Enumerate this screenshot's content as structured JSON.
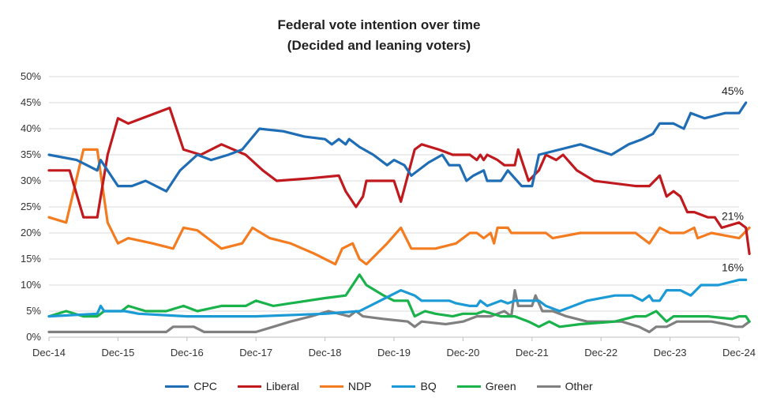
{
  "chart_data": {
    "type": "line",
    "title": [
      "Federal vote intention over time",
      "(Decided and leaning voters)"
    ],
    "ylim": [
      0,
      50
    ],
    "yticks": [
      "0%",
      "5%",
      "10%",
      "15%",
      "20%",
      "25%",
      "30%",
      "35%",
      "40%",
      "45%",
      "50%"
    ],
    "x_unit": "years since Dec 2014",
    "xlim": [
      0,
      10
    ],
    "xticks": [
      "Dec-14",
      "Dec-15",
      "Dec-16",
      "Dec-17",
      "Dec-18",
      "Dec-19",
      "Dec-20",
      "Dec-21",
      "Dec-22",
      "Dec-23",
      "Dec-24"
    ],
    "annotations": [
      {
        "label": "45%",
        "x": 10,
        "y": 45,
        "anchor": "above"
      },
      {
        "label": "21%",
        "x": 10,
        "y": 21,
        "anchor": "above"
      },
      {
        "label": "16%",
        "x": 10,
        "y": 16,
        "anchor": "below"
      }
    ],
    "series": [
      {
        "name": "CPC",
        "color": "#1f6eb5",
        "points": [
          [
            0,
            35
          ],
          [
            0.4,
            34
          ],
          [
            0.7,
            32
          ],
          [
            0.75,
            34
          ],
          [
            0.95,
            30
          ],
          [
            1.0,
            29
          ],
          [
            1.2,
            29
          ],
          [
            1.4,
            30
          ],
          [
            1.7,
            28
          ],
          [
            1.9,
            32
          ],
          [
            2.15,
            35
          ],
          [
            2.35,
            34
          ],
          [
            2.6,
            35
          ],
          [
            2.8,
            36
          ],
          [
            3.05,
            40
          ],
          [
            3.4,
            39.5
          ],
          [
            3.7,
            38.5
          ],
          [
            4.0,
            38
          ],
          [
            4.1,
            37
          ],
          [
            4.2,
            38
          ],
          [
            4.3,
            37
          ],
          [
            4.35,
            38
          ],
          [
            4.5,
            36.5
          ],
          [
            4.7,
            35
          ],
          [
            4.9,
            33
          ],
          [
            5.0,
            34
          ],
          [
            5.15,
            33
          ],
          [
            5.25,
            31
          ],
          [
            5.5,
            33.5
          ],
          [
            5.7,
            35
          ],
          [
            5.8,
            33
          ],
          [
            5.95,
            33
          ],
          [
            6.05,
            30
          ],
          [
            6.15,
            31
          ],
          [
            6.3,
            32
          ],
          [
            6.35,
            30
          ],
          [
            6.55,
            30
          ],
          [
            6.65,
            32
          ],
          [
            6.85,
            29
          ],
          [
            7.0,
            29
          ],
          [
            7.1,
            35
          ],
          [
            7.7,
            37
          ],
          [
            8.15,
            35
          ],
          [
            8.4,
            37
          ],
          [
            8.6,
            38
          ],
          [
            8.75,
            39
          ],
          [
            8.85,
            41
          ],
          [
            9.05,
            41
          ],
          [
            9.2,
            40
          ],
          [
            9.3,
            43
          ],
          [
            9.5,
            42
          ],
          [
            9.8,
            43
          ],
          [
            10.0,
            43
          ],
          [
            10.1,
            45
          ]
        ]
      },
      {
        "name": "Liberal",
        "color": "#c0191e",
        "points": [
          [
            0,
            32
          ],
          [
            0.3,
            32
          ],
          [
            0.5,
            23
          ],
          [
            0.7,
            23
          ],
          [
            0.85,
            35
          ],
          [
            1.0,
            42
          ],
          [
            1.15,
            41
          ],
          [
            1.45,
            42.5
          ],
          [
            1.75,
            44
          ],
          [
            1.95,
            36
          ],
          [
            2.2,
            35
          ],
          [
            2.5,
            37
          ],
          [
            2.85,
            35
          ],
          [
            3.1,
            32
          ],
          [
            3.3,
            30
          ],
          [
            3.8,
            30.5
          ],
          [
            4.2,
            31
          ],
          [
            4.3,
            28
          ],
          [
            4.45,
            25
          ],
          [
            4.55,
            27
          ],
          [
            4.6,
            30
          ],
          [
            5.0,
            30
          ],
          [
            5.1,
            26
          ],
          [
            5.3,
            36
          ],
          [
            5.4,
            37
          ],
          [
            5.65,
            36
          ],
          [
            5.85,
            35
          ],
          [
            6.1,
            35
          ],
          [
            6.2,
            34
          ],
          [
            6.25,
            35
          ],
          [
            6.3,
            34
          ],
          [
            6.35,
            35
          ],
          [
            6.5,
            34
          ],
          [
            6.6,
            33
          ],
          [
            6.75,
            33
          ],
          [
            6.8,
            36
          ],
          [
            6.95,
            30
          ],
          [
            7.1,
            32
          ],
          [
            7.2,
            35
          ],
          [
            7.35,
            34
          ],
          [
            7.45,
            35
          ],
          [
            7.65,
            32
          ],
          [
            7.9,
            30
          ],
          [
            8.5,
            29
          ],
          [
            8.7,
            29
          ],
          [
            8.85,
            31
          ],
          [
            8.95,
            27
          ],
          [
            9.05,
            28
          ],
          [
            9.15,
            27
          ],
          [
            9.25,
            24
          ],
          [
            9.35,
            24
          ],
          [
            9.55,
            23
          ],
          [
            9.65,
            23
          ],
          [
            9.75,
            21
          ],
          [
            10.0,
            22
          ],
          [
            10.1,
            21
          ],
          [
            10.15,
            16
          ]
        ]
      },
      {
        "name": "NDP",
        "color": "#f47c20",
        "points": [
          [
            0,
            23
          ],
          [
            0.25,
            22
          ],
          [
            0.5,
            36
          ],
          [
            0.7,
            36
          ],
          [
            0.85,
            22
          ],
          [
            1.0,
            18
          ],
          [
            1.15,
            19
          ],
          [
            1.5,
            18
          ],
          [
            1.8,
            17
          ],
          [
            1.95,
            21
          ],
          [
            2.15,
            20.5
          ],
          [
            2.3,
            19
          ],
          [
            2.5,
            17
          ],
          [
            2.8,
            18
          ],
          [
            2.95,
            21
          ],
          [
            3.2,
            19
          ],
          [
            3.5,
            18
          ],
          [
            3.85,
            16
          ],
          [
            4.15,
            14
          ],
          [
            4.25,
            17
          ],
          [
            4.4,
            18
          ],
          [
            4.5,
            15
          ],
          [
            4.6,
            14
          ],
          [
            4.9,
            18
          ],
          [
            5.1,
            21
          ],
          [
            5.25,
            17
          ],
          [
            5.6,
            17
          ],
          [
            5.9,
            18
          ],
          [
            6.1,
            20
          ],
          [
            6.2,
            20
          ],
          [
            6.3,
            19
          ],
          [
            6.4,
            20
          ],
          [
            6.45,
            18
          ],
          [
            6.5,
            21
          ],
          [
            6.65,
            21
          ],
          [
            6.7,
            20
          ],
          [
            7.0,
            20
          ],
          [
            7.2,
            20
          ],
          [
            7.3,
            19
          ],
          [
            7.7,
            20
          ],
          [
            8.5,
            20
          ],
          [
            8.7,
            18
          ],
          [
            8.85,
            21
          ],
          [
            9.0,
            20
          ],
          [
            9.2,
            20
          ],
          [
            9.35,
            21
          ],
          [
            9.4,
            19
          ],
          [
            9.6,
            20
          ],
          [
            9.8,
            19.5
          ],
          [
            10.0,
            19
          ],
          [
            10.15,
            21
          ]
        ]
      },
      {
        "name": "BQ",
        "color": "#1b9ad6",
        "points": [
          [
            0,
            4
          ],
          [
            0.7,
            4.5
          ],
          [
            0.75,
            6
          ],
          [
            0.8,
            5
          ],
          [
            1.1,
            5
          ],
          [
            1.3,
            4.5
          ],
          [
            2.0,
            4
          ],
          [
            3.0,
            4
          ],
          [
            4.0,
            4.5
          ],
          [
            4.5,
            5
          ],
          [
            4.8,
            7
          ],
          [
            5.1,
            9
          ],
          [
            5.3,
            8
          ],
          [
            5.4,
            7
          ],
          [
            5.8,
            7
          ],
          [
            5.9,
            6.5
          ],
          [
            6.1,
            6
          ],
          [
            6.2,
            6
          ],
          [
            6.25,
            7
          ],
          [
            6.35,
            6
          ],
          [
            6.55,
            7
          ],
          [
            6.65,
            6.5
          ],
          [
            6.75,
            7
          ],
          [
            7.1,
            7
          ],
          [
            7.2,
            6
          ],
          [
            7.4,
            5
          ],
          [
            7.8,
            7
          ],
          [
            8.2,
            8
          ],
          [
            8.45,
            8
          ],
          [
            8.6,
            7
          ],
          [
            8.7,
            8
          ],
          [
            8.75,
            7
          ],
          [
            8.85,
            7
          ],
          [
            8.95,
            9
          ],
          [
            9.15,
            9
          ],
          [
            9.3,
            8
          ],
          [
            9.45,
            10
          ],
          [
            9.7,
            10
          ],
          [
            10.0,
            11
          ],
          [
            10.1,
            11
          ]
        ]
      },
      {
        "name": "Green",
        "color": "#1ab24b",
        "points": [
          [
            0,
            4
          ],
          [
            0.25,
            5
          ],
          [
            0.5,
            4
          ],
          [
            0.7,
            4
          ],
          [
            0.8,
            5
          ],
          [
            1.05,
            5
          ],
          [
            1.15,
            6
          ],
          [
            1.4,
            5
          ],
          [
            1.7,
            5
          ],
          [
            1.95,
            6
          ],
          [
            2.15,
            5
          ],
          [
            2.5,
            6
          ],
          [
            2.85,
            6
          ],
          [
            3.0,
            7
          ],
          [
            3.25,
            6
          ],
          [
            3.5,
            6.5
          ],
          [
            4.0,
            7.5
          ],
          [
            4.3,
            8
          ],
          [
            4.5,
            12
          ],
          [
            4.6,
            10
          ],
          [
            4.85,
            8
          ],
          [
            5.0,
            7
          ],
          [
            5.2,
            7
          ],
          [
            5.3,
            4
          ],
          [
            5.45,
            5
          ],
          [
            5.6,
            4.5
          ],
          [
            5.85,
            4
          ],
          [
            6.0,
            4.5
          ],
          [
            6.2,
            4.5
          ],
          [
            6.3,
            5
          ],
          [
            6.55,
            4
          ],
          [
            6.75,
            4
          ],
          [
            6.95,
            3
          ],
          [
            7.1,
            2
          ],
          [
            7.25,
            3
          ],
          [
            7.4,
            2
          ],
          [
            7.7,
            2.5
          ],
          [
            8.2,
            3
          ],
          [
            8.5,
            4
          ],
          [
            8.65,
            4
          ],
          [
            8.8,
            5
          ],
          [
            8.95,
            3
          ],
          [
            9.05,
            4
          ],
          [
            9.3,
            4
          ],
          [
            9.55,
            4
          ],
          [
            9.9,
            3.5
          ],
          [
            10.0,
            4
          ],
          [
            10.1,
            4
          ],
          [
            10.15,
            3
          ]
        ]
      },
      {
        "name": "Other",
        "color": "#808080",
        "points": [
          [
            0,
            1
          ],
          [
            1.0,
            1
          ],
          [
            1.7,
            1
          ],
          [
            1.8,
            2
          ],
          [
            2.1,
            2
          ],
          [
            2.25,
            1
          ],
          [
            3.0,
            1
          ],
          [
            3.25,
            2
          ],
          [
            3.5,
            3
          ],
          [
            3.8,
            4
          ],
          [
            4.05,
            5
          ],
          [
            4.35,
            4
          ],
          [
            4.45,
            5
          ],
          [
            4.55,
            4
          ],
          [
            4.85,
            3.5
          ],
          [
            5.2,
            3
          ],
          [
            5.3,
            2
          ],
          [
            5.4,
            3
          ],
          [
            5.75,
            2.5
          ],
          [
            6.0,
            3
          ],
          [
            6.2,
            4
          ],
          [
            6.4,
            4
          ],
          [
            6.6,
            5
          ],
          [
            6.7,
            4
          ],
          [
            6.75,
            9
          ],
          [
            6.8,
            6
          ],
          [
            7.0,
            6
          ],
          [
            7.05,
            8
          ],
          [
            7.15,
            5
          ],
          [
            7.3,
            5
          ],
          [
            7.5,
            4
          ],
          [
            7.8,
            3
          ],
          [
            8.3,
            3
          ],
          [
            8.55,
            2
          ],
          [
            8.7,
            1
          ],
          [
            8.8,
            2
          ],
          [
            8.95,
            2
          ],
          [
            9.1,
            3
          ],
          [
            9.3,
            3
          ],
          [
            9.6,
            3
          ],
          [
            9.8,
            2.5
          ],
          [
            9.95,
            2
          ],
          [
            10.05,
            2
          ],
          [
            10.15,
            3
          ]
        ]
      }
    ]
  }
}
